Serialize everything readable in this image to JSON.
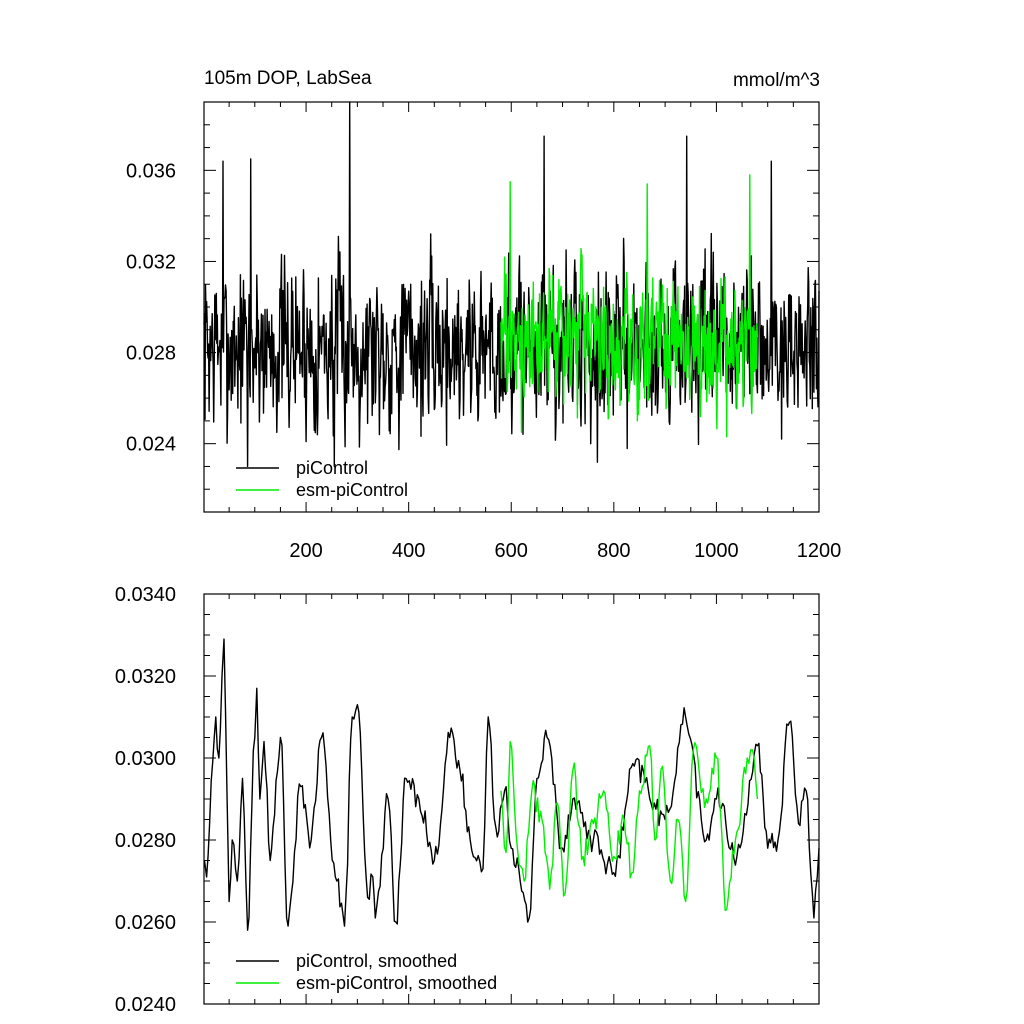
{
  "chart_data": [
    {
      "type": "line",
      "title": "105m DOP, LabSea",
      "units": "mmol/m^3",
      "xlim": [
        1,
        1200
      ],
      "ylim": [
        0.021,
        0.039
      ],
      "x_major_ticks": [
        200,
        400,
        600,
        800,
        1000,
        1200
      ],
      "x_tick_labels": [
        "200",
        "400",
        "600",
        "800",
        "1000",
        "1200"
      ],
      "y_major_ticks": [
        0.024,
        0.028,
        0.032,
        0.036
      ],
      "y_tick_labels": [
        "0.024",
        "0.028",
        "0.032",
        "0.036"
      ],
      "legend_position": "bottom-left",
      "series": [
        {
          "name": "piControl",
          "color": "#000000",
          "x_start": 1,
          "x_end": 1200,
          "mean": 0.0283,
          "range": [
            0.0228,
            0.039
          ],
          "peaks": [
            [
              38,
              0.0364
            ],
            [
              92,
              0.0365
            ],
            [
              285,
              0.039
            ],
            [
              664,
              0.0375
            ],
            [
              942,
              0.0375
            ],
            [
              1107,
              0.0364
            ]
          ],
          "troughs": [
            [
              86,
              0.023
            ],
            [
              255,
              0.023
            ],
            [
              755,
              0.024
            ],
            [
              1127,
              0.0242
            ]
          ]
        },
        {
          "name": "esm-piControl",
          "color": "#00ee00",
          "x_start": 580,
          "x_end": 1080,
          "mean": 0.0285,
          "range": [
            0.0243,
            0.0358
          ],
          "peaks": [
            [
              598,
              0.0355
            ],
            [
              865,
              0.0354
            ],
            [
              1065,
              0.0358
            ]
          ],
          "troughs": [
            [
              620,
              0.0245
            ],
            [
              1020,
              0.0243
            ]
          ]
        }
      ]
    },
    {
      "type": "line",
      "xlim": [
        1,
        1200
      ],
      "ylim": [
        0.024,
        0.034
      ],
      "x_major_ticks": [
        200,
        400,
        600,
        800,
        1000,
        1200
      ],
      "y_major_ticks": [
        0.024,
        0.026,
        0.028,
        0.03,
        0.032,
        0.034
      ],
      "y_tick_labels": [
        "0.0240",
        "0.0260",
        "0.0280",
        "0.0300",
        "0.0320",
        "0.0340"
      ],
      "legend_position": "bottom-left",
      "series": [
        {
          "name": "piControl, smoothed",
          "color": "#000000",
          "x_start": 1,
          "x_end": 1200,
          "key_points": [
            [
              2,
              0.0275
            ],
            [
              6,
              0.0271
            ],
            [
              12,
              0.0284
            ],
            [
              18,
              0.0299
            ],
            [
              24,
              0.031
            ],
            [
              30,
              0.03
            ],
            [
              36,
              0.032
            ],
            [
              40,
              0.0329
            ],
            [
              46,
              0.029
            ],
            [
              50,
              0.0265
            ],
            [
              56,
              0.028
            ],
            [
              66,
              0.027
            ],
            [
              76,
              0.0295
            ],
            [
              86,
              0.0258
            ],
            [
              100,
              0.0305
            ],
            [
              104,
              0.0317
            ],
            [
              110,
              0.029
            ],
            [
              118,
              0.0304
            ],
            [
              130,
              0.0275
            ],
            [
              150,
              0.0305
            ],
            [
              165,
              0.0259
            ],
            [
              190,
              0.0293
            ],
            [
              210,
              0.028
            ],
            [
              230,
              0.0305
            ],
            [
              260,
              0.027
            ],
            [
              275,
              0.0259
            ],
            [
              290,
              0.031
            ],
            [
              300,
              0.0313
            ],
            [
              320,
              0.0266
            ],
            [
              330,
              0.0271
            ],
            [
              335,
              0.0261
            ],
            [
              360,
              0.029
            ],
            [
              375,
              0.026
            ],
            [
              395,
              0.0295
            ],
            [
              420,
              0.029
            ],
            [
              450,
              0.0275
            ],
            [
              480,
              0.0305
            ],
            [
              500,
              0.0297
            ],
            [
              520,
              0.028
            ],
            [
              545,
              0.0273
            ],
            [
              555,
              0.031
            ],
            [
              570,
              0.0283
            ],
            [
              590,
              0.0293
            ],
            [
              600,
              0.0278
            ],
            [
              635,
              0.0261
            ],
            [
              650,
              0.0295
            ],
            [
              670,
              0.0305
            ],
            [
              700,
              0.0278
            ],
            [
              720,
              0.029
            ],
            [
              760,
              0.028
            ],
            [
              800,
              0.0272
            ],
            [
              840,
              0.0298
            ],
            [
              900,
              0.0285
            ],
            [
              940,
              0.031
            ],
            [
              980,
              0.028
            ],
            [
              1000,
              0.029
            ],
            [
              1040,
              0.0276
            ],
            [
              1080,
              0.0303
            ],
            [
              1100,
              0.0278
            ],
            [
              1120,
              0.028
            ],
            [
              1140,
              0.0308
            ],
            [
              1145,
              0.0309
            ],
            [
              1160,
              0.0284
            ],
            [
              1175,
              0.0292
            ],
            [
              1190,
              0.0261
            ],
            [
              1200,
              0.0278
            ]
          ]
        },
        {
          "name": "esm-piControl, smoothed",
          "color": "#00ee00",
          "x_start": 580,
          "x_end": 1080,
          "key_points": [
            [
              580,
              0.0292
            ],
            [
              590,
              0.0277
            ],
            [
              598,
              0.0304
            ],
            [
              612,
              0.0278
            ],
            [
              625,
              0.027
            ],
            [
              640,
              0.0292
            ],
            [
              660,
              0.0285
            ],
            [
              675,
              0.0268
            ],
            [
              690,
              0.0289
            ],
            [
              705,
              0.0267
            ],
            [
              720,
              0.0297
            ],
            [
              740,
              0.0276
            ],
            [
              760,
              0.0284
            ],
            [
              780,
              0.0292
            ],
            [
              800,
              0.0276
            ],
            [
              820,
              0.0285
            ],
            [
              835,
              0.0272
            ],
            [
              850,
              0.0292
            ],
            [
              870,
              0.0303
            ],
            [
              880,
              0.028
            ],
            [
              895,
              0.0298
            ],
            [
              910,
              0.027
            ],
            [
              925,
              0.0285
            ],
            [
              940,
              0.0265
            ],
            [
              955,
              0.0302
            ],
            [
              980,
              0.029
            ],
            [
              1000,
              0.03
            ],
            [
              1020,
              0.0263
            ],
            [
              1040,
              0.0282
            ],
            [
              1060,
              0.03
            ],
            [
              1070,
              0.0302
            ],
            [
              1080,
              0.029
            ]
          ]
        }
      ]
    }
  ]
}
